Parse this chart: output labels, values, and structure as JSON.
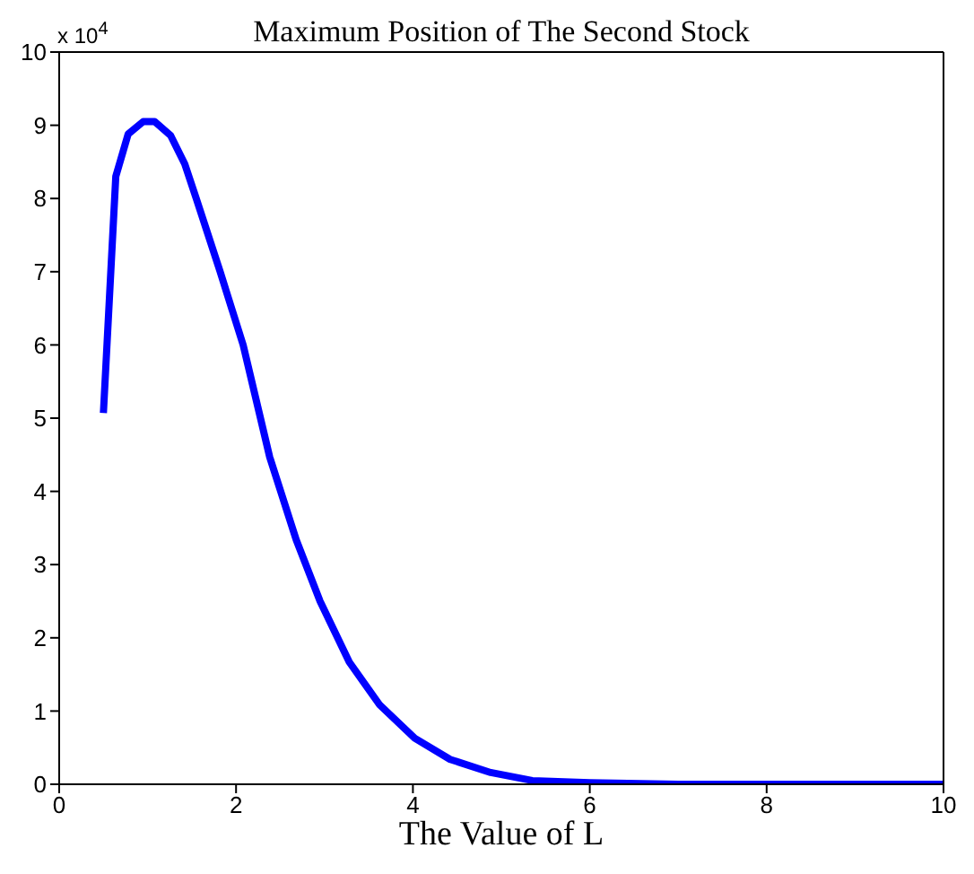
{
  "chart_data": {
    "type": "line",
    "title": "Maximum Position of The Second Stock",
    "xlabel": "The Value of L",
    "annotations": [
      "x 10$^{4}$"
    ],
    "x": [
      0.5,
      0.64,
      0.78,
      0.95,
      1.08,
      1.26,
      1.42,
      1.55,
      1.82,
      2.08,
      2.38,
      2.68,
      2.95,
      3.28,
      3.62,
      4.02,
      4.42,
      4.88,
      5.35,
      6,
      7,
      8,
      9,
      10
    ],
    "series": [
      {
        "color": "#0000ff",
        "values": [
          5.07,
          8.3,
          8.88,
          9.05,
          9.05,
          8.86,
          8.47,
          8.0,
          7.0,
          6.0,
          4.47,
          3.34,
          2.5,
          1.67,
          1.09,
          0.63,
          0.34,
          0.16,
          0.05,
          0.02,
          0,
          0,
          0,
          0
        ]
      }
    ],
    "xlim": [
      0,
      10
    ],
    "xticks": [
      0,
      2,
      4,
      6,
      8,
      10
    ],
    "ylim": [
      0,
      10
    ],
    "yticks": [
      0,
      1,
      2,
      3,
      4,
      5,
      6,
      7,
      8,
      9,
      10
    ],
    "grid": false,
    "marker": "none",
    "line_style": "solid"
  }
}
